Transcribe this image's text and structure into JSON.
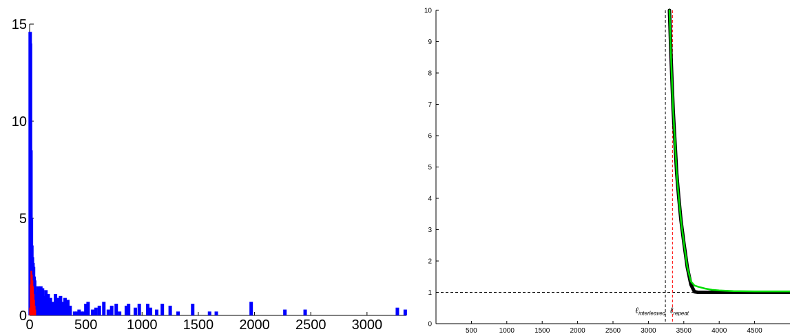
{
  "colors": {
    "blue": "#0000ff",
    "red": "#ff0000",
    "green": "#00dd00",
    "black": "#000000"
  },
  "chart_data": [
    {
      "type": "bar",
      "xlim": [
        0,
        3350
      ],
      "ylim": [
        0,
        15
      ],
      "xticks": [
        "0",
        "500",
        "1000",
        "1500",
        "2000",
        "2500",
        "3000"
      ],
      "xtick_values": [
        0,
        500,
        1000,
        1500,
        2000,
        2500,
        3000
      ],
      "yticks": [
        "0",
        "5",
        "10",
        "15"
      ],
      "ytick_values": [
        0,
        5,
        10,
        15
      ],
      "grid": false,
      "series": [
        {
          "color": "#0000ff",
          "values": [
            [
              5,
              14.6
            ],
            [
              8,
              14.0
            ],
            [
              12,
              8.5
            ],
            [
              16,
              5.0
            ],
            [
              20,
              3.6
            ],
            [
              25,
              3.0
            ],
            [
              30,
              2.7
            ],
            [
              35,
              2.5
            ],
            [
              40,
              2.0
            ],
            [
              45,
              1.8
            ],
            [
              50,
              1.5
            ],
            [
              55,
              1.2
            ],
            [
              60,
              1.0
            ],
            [
              65,
              0.9
            ],
            [
              70,
              0.8
            ],
            [
              80,
              1.5
            ],
            [
              90,
              0.7
            ],
            [
              100,
              1.5
            ],
            [
              115,
              1.4
            ],
            [
              130,
              1.0
            ],
            [
              145,
              1.3
            ],
            [
              165,
              1.1
            ],
            [
              185,
              0.9
            ],
            [
              205,
              0.7
            ],
            [
              230,
              1.1
            ],
            [
              255,
              0.9
            ],
            [
              275,
              1.0
            ],
            [
              295,
              0.7
            ],
            [
              315,
              0.9
            ],
            [
              340,
              0.8
            ],
            [
              360,
              0.5
            ],
            [
              400,
              0.2
            ],
            [
              420,
              0.2
            ],
            [
              440,
              0.3
            ],
            [
              460,
              0.2
            ],
            [
              480,
              0.2
            ],
            [
              500,
              0.6
            ],
            [
              520,
              0.7
            ],
            [
              560,
              0.3
            ],
            [
              590,
              0.4
            ],
            [
              620,
              0.5
            ],
            [
              660,
              0.7
            ],
            [
              700,
              0.3
            ],
            [
              730,
              0.5
            ],
            [
              770,
              0.6
            ],
            [
              800,
              0.2
            ],
            [
              860,
              0.5
            ],
            [
              880,
              0.6
            ],
            [
              940,
              0.4
            ],
            [
              975,
              0.6
            ],
            [
              1050,
              0.6
            ],
            [
              1075,
              0.4
            ],
            [
              1130,
              0.3
            ],
            [
              1180,
              0.6
            ],
            [
              1250,
              0.5
            ],
            [
              1320,
              0.2
            ],
            [
              1450,
              0.6
            ],
            [
              1600,
              0.2
            ],
            [
              1660,
              0.2
            ],
            [
              1970,
              0.7
            ],
            [
              2270,
              0.3
            ],
            [
              2450,
              0.3
            ],
            [
              3270,
              0.4
            ],
            [
              3340,
              0.3
            ]
          ]
        },
        {
          "color": "#ff0000",
          "values": [
            [
              4,
              0.4
            ],
            [
              10,
              1.6
            ],
            [
              15,
              2.3
            ],
            [
              20,
              2.1
            ],
            [
              25,
              1.8
            ],
            [
              30,
              1.5
            ],
            [
              35,
              1.1
            ],
            [
              40,
              0.8
            ],
            [
              45,
              0.5
            ],
            [
              50,
              0.3
            ]
          ]
        }
      ]
    },
    {
      "type": "line",
      "xlim": [
        0,
        5000
      ],
      "ylim": [
        0,
        10
      ],
      "xticks": [
        "500",
        "1000",
        "1500",
        "2000",
        "2500",
        "3000",
        "3500",
        "4000",
        "4500"
      ],
      "xtick_values": [
        500,
        1000,
        1500,
        2000,
        2500,
        3000,
        3500,
        4000,
        4500
      ],
      "yticks": [
        "0",
        "1",
        "2",
        "3",
        "4",
        "5",
        "6",
        "7",
        "8",
        "9",
        "10"
      ],
      "ytick_values": [
        0,
        1,
        2,
        3,
        4,
        5,
        6,
        7,
        8,
        9,
        10
      ],
      "grid": false,
      "series": [
        {
          "color": "#000000",
          "x": [
            3298,
            3320,
            3350,
            3380,
            3400,
            3430,
            3460,
            3500,
            3550,
            3600,
            3650,
            3700,
            3800,
            4000,
            4300,
            5000
          ],
          "y": [
            10,
            8.5,
            6.8,
            5.6,
            4.8,
            4.0,
            3.3,
            2.6,
            1.8,
            1.25,
            1.02,
            1.0,
            1.0,
            1.0,
            1.0,
            1.0
          ]
        },
        {
          "color": "#00dd00",
          "x": [
            3298,
            3320,
            3350,
            3380,
            3400,
            3430,
            3460,
            3500,
            3550,
            3600,
            3650,
            3700,
            3800,
            3900,
            4000,
            4200,
            4500,
            5000
          ],
          "y": [
            10,
            8.5,
            6.8,
            5.6,
            4.8,
            4.0,
            3.3,
            2.6,
            1.8,
            1.35,
            1.22,
            1.18,
            1.12,
            1.08,
            1.06,
            1.04,
            1.03,
            1.03
          ]
        }
      ],
      "reference_lines": [
        {
          "orientation": "horizontal",
          "value": 1,
          "color": "#000000",
          "style": "dashed"
        },
        {
          "orientation": "vertical",
          "value": 3240,
          "color": "#000000",
          "style": "dashed"
        },
        {
          "orientation": "vertical",
          "value": 3340,
          "color": "#ff0000",
          "style": "dashed"
        }
      ],
      "annotations": [
        {
          "symbol": "ℓ",
          "subscript": "interleaved",
          "x": 3240
        },
        {
          "symbol": "ℓ",
          "subscript": "repeat",
          "x": 3340
        }
      ]
    }
  ]
}
